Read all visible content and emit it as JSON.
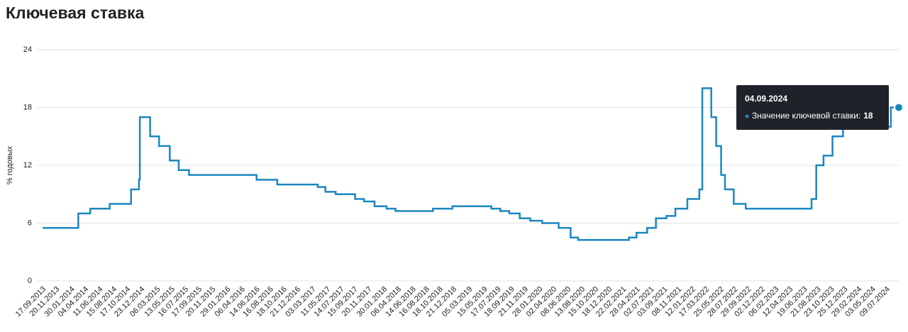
{
  "chart_data": {
    "type": "step-line",
    "title": "Ключевая ставка",
    "y_label": "% годовых",
    "ylim": [
      0,
      24
    ],
    "yticks": [
      0,
      6,
      12,
      18,
      24
    ],
    "grid": true,
    "xlim": [
      "17.09.2013",
      "04.09.2024"
    ],
    "xticks": [
      "17.09.2013",
      "20.11.2013",
      "30.01.2014",
      "04.04.2014",
      "11.06.2014",
      "15.08.2014",
      "17.10.2014",
      "23.12.2014",
      "06.03.2015",
      "13.05.2015",
      "16.07.2015",
      "17.09.2015",
      "20.11.2015",
      "29.01.2016",
      "06.04.2016",
      "14.06.2016",
      "16.08.2016",
      "18.10.2016",
      "21.12.2016",
      "03.03.2017",
      "11.05.2017",
      "14.07.2017",
      "15.09.2017",
      "20.11.2017",
      "30.01.2018",
      "06.04.2018",
      "14.06.2018",
      "16.08.2018",
      "18.10.2018",
      "21.12.2018",
      "05.03.2019",
      "15.05.2019",
      "17.07.2019",
      "18.09.2019",
      "21.11.2019",
      "28.01.2020",
      "02.04.2020",
      "08.06.2020",
      "13.08.2020",
      "15.10.2020",
      "18.12.2020",
      "22.02.2021",
      "28.04.2021",
      "02.07.2021",
      "03.09.2021",
      "08.11.2021",
      "12.01.2022",
      "17.03.2022",
      "25.05.2022",
      "28.07.2022",
      "29.09.2022",
      "02.12.2022",
      "06.02.2023",
      "12.04.2023",
      "19.06.2023",
      "21.08.2023",
      "23.10.2023",
      "25.12.2023",
      "29.02.2024",
      "03.05.2024",
      "09.07.2024"
    ],
    "x": [
      "17.09.2013",
      "03.03.2014",
      "28.04.2014",
      "28.07.2014",
      "05.11.2014",
      "12.12.2014",
      "16.12.2014",
      "02.02.2015",
      "16.03.2015",
      "05.05.2015",
      "16.06.2015",
      "03.08.2015",
      "14.06.2016",
      "19.09.2016",
      "27.03.2017",
      "02.05.2017",
      "19.06.2017",
      "18.09.2017",
      "30.10.2017",
      "18.12.2017",
      "12.02.2018",
      "26.03.2018",
      "17.09.2018",
      "17.12.2018",
      "17.06.2019",
      "29.07.2019",
      "09.09.2019",
      "28.10.2019",
      "16.12.2019",
      "10.02.2020",
      "27.04.2020",
      "22.06.2020",
      "27.07.2020",
      "22.03.2021",
      "26.04.2021",
      "15.06.2021",
      "26.07.2021",
      "13.09.2021",
      "25.10.2021",
      "20.12.2021",
      "14.02.2022",
      "28.02.2022",
      "11.04.2022",
      "04.05.2022",
      "27.05.2022",
      "14.06.2022",
      "25.07.2022",
      "19.09.2022",
      "24.07.2023",
      "15.08.2023",
      "18.09.2023",
      "30.10.2023",
      "18.12.2023",
      "29.07.2024",
      "04.09.2024"
    ],
    "series": [
      {
        "name": "Значение ключевой ставки:",
        "color": "#1b87c0",
        "values": [
          5.5,
          7,
          7.5,
          8,
          9.5,
          10.5,
          17,
          15,
          14,
          12.5,
          11.5,
          11,
          10.5,
          10,
          9.75,
          9.25,
          9,
          8.5,
          8.25,
          7.75,
          7.5,
          7.25,
          7.5,
          7.75,
          7.5,
          7.25,
          7,
          6.5,
          6.25,
          6,
          5.5,
          4.5,
          4.25,
          4.5,
          5,
          5.5,
          6.5,
          6.75,
          7.5,
          8.5,
          9.5,
          20,
          17,
          14,
          11,
          9.5,
          8,
          7.5,
          8.5,
          12,
          13,
          15,
          16,
          18,
          18
        ]
      }
    ]
  }
}
